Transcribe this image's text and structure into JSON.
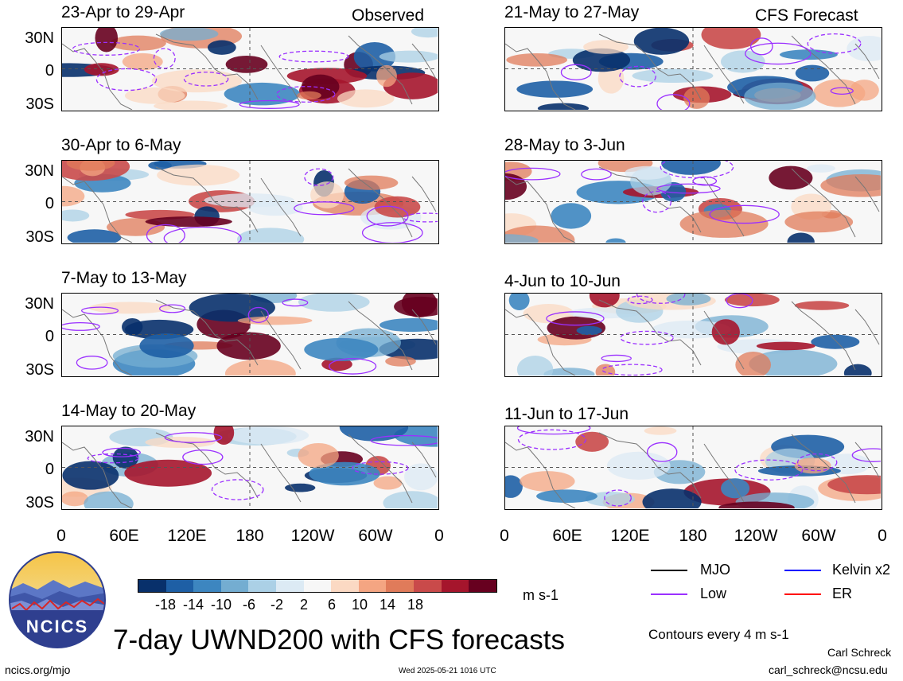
{
  "header": {
    "observed_label": "Observed",
    "forecast_label": "CFS Forecast"
  },
  "panels_observed": [
    {
      "period": "23-Apr to 29-Apr"
    },
    {
      "period": "30-Apr to 6-May"
    },
    {
      "period": "7-May to 13-May"
    },
    {
      "period": "14-May to 20-May"
    }
  ],
  "panels_forecast": [
    {
      "period": "21-May to 27-May"
    },
    {
      "period": "28-May to 3-Jun"
    },
    {
      "period": "4-Jun to 10-Jun"
    },
    {
      "period": "11-Jun to 17-Jun"
    }
  ],
  "lat_labels": [
    "30N",
    "0",
    "30S"
  ],
  "lon_labels": [
    "0",
    "60E",
    "120E",
    "180",
    "120W",
    "60W",
    "0"
  ],
  "colorbar": {
    "ticks": [
      "-18",
      "-14",
      "-10",
      "-6",
      "-2",
      "2",
      "6",
      "10",
      "14",
      "18"
    ],
    "units": "m s-1",
    "colors": [
      "#08306b",
      "#1e5fa5",
      "#3d86c0",
      "#74add1",
      "#abd0e6",
      "#dceaf4",
      "#f7f7f7",
      "#fbd9c3",
      "#f4a582",
      "#e07b5a",
      "#c94a4a",
      "#a5152c",
      "#67001f"
    ]
  },
  "legend": {
    "items": [
      {
        "label": "MJO",
        "color": "#000000"
      },
      {
        "label": "Kelvin x2",
        "color": "#0000ff"
      },
      {
        "label": "Low",
        "color": "#9b30ff"
      },
      {
        "label": "ER",
        "color": "#ff0000"
      }
    ],
    "contour_note": "Contours every 4 m s-1"
  },
  "logo": {
    "text": "NCICS"
  },
  "main_title": "7-day UWND200 with CFS forecasts",
  "footer": {
    "url": "ncics.org/mjo",
    "timestamp": "Wed 2025-05-21 1016 UTC",
    "author": "Carl Schreck",
    "email": "carl_schreck@ncsu.edu"
  }
}
